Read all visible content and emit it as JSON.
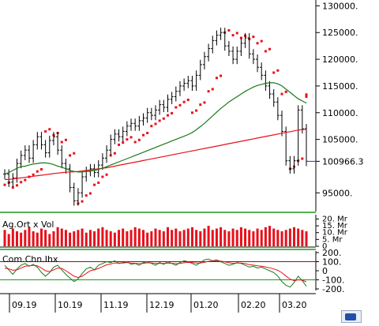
{
  "chart_data": [
    {
      "type": "ohlc",
      "panel": "price",
      "y_ticks": [
        "130000.",
        "125000.",
        "120000.",
        "115000.",
        "110000.",
        "105000.",
        "100966.3",
        "95000."
      ],
      "ylim": [
        91500,
        130500
      ],
      "last_value_label": "100966.3",
      "x_ticks": [
        "09.19",
        "10.19",
        "11.19",
        "12.19",
        "01.20",
        "02.20",
        "03.20"
      ],
      "closes": [
        98500,
        97000,
        97800,
        100500,
        102000,
        103000,
        101500,
        104000,
        105500,
        104000,
        102500,
        104800,
        105500,
        103000,
        100500,
        99500,
        96000,
        93500,
        95000,
        98000,
        99000,
        99500,
        98800,
        100200,
        101500,
        103000,
        105000,
        106000,
        105500,
        106500,
        107500,
        108000,
        107500,
        108500,
        109000,
        110000,
        109500,
        110500,
        111500,
        111000,
        112500,
        113000,
        114000,
        115000,
        115500,
        116000,
        115000,
        117000,
        119000,
        120500,
        122000,
        123500,
        124500,
        125000,
        122500,
        121500,
        120000,
        121500,
        123000,
        124000,
        121000,
        120000,
        118500,
        117000,
        115000,
        113500,
        112000,
        109500,
        106500,
        101000,
        99500,
        101000,
        110500,
        107000,
        100900
      ],
      "sar": [
        {
          "i": 0,
          "v": 96500
        },
        {
          "i": 2,
          "v": 96000
        },
        {
          "i": 4,
          "v": 97000
        },
        {
          "i": 6,
          "v": 98000
        },
        {
          "i": 8,
          "v": 99000
        },
        {
          "i": 10,
          "v": 106500
        },
        {
          "i": 12,
          "v": 105800
        },
        {
          "i": 14,
          "v": 104500
        },
        {
          "i": 16,
          "v": 102000
        },
        {
          "i": 18,
          "v": 93000
        },
        {
          "i": 20,
          "v": 94500
        },
        {
          "i": 22,
          "v": 96500
        },
        {
          "i": 24,
          "v": 98000
        },
        {
          "i": 26,
          "v": 102000
        },
        {
          "i": 28,
          "v": 104000
        },
        {
          "i": 30,
          "v": 105000
        },
        {
          "i": 32,
          "v": 104500
        },
        {
          "i": 34,
          "v": 105800
        },
        {
          "i": 36,
          "v": 107500
        },
        {
          "i": 38,
          "v": 108500
        },
        {
          "i": 40,
          "v": 109500
        },
        {
          "i": 42,
          "v": 111000
        },
        {
          "i": 44,
          "v": 112000
        },
        {
          "i": 46,
          "v": 110000
        },
        {
          "i": 48,
          "v": 111500
        },
        {
          "i": 50,
          "v": 114000
        },
        {
          "i": 52,
          "v": 116500
        },
        {
          "i": 54,
          "v": 125000
        },
        {
          "i": 56,
          "v": 124500
        },
        {
          "i": 58,
          "v": 124000
        },
        {
          "i": 60,
          "v": 123800
        },
        {
          "i": 62,
          "v": 123000
        },
        {
          "i": 64,
          "v": 121500
        },
        {
          "i": 66,
          "v": 117500
        },
        {
          "i": 68,
          "v": 113500
        },
        {
          "i": 70,
          "v": 99500
        },
        {
          "i": 72,
          "v": 101000
        },
        {
          "i": 74,
          "v": 113000
        }
      ],
      "ma_long": [
        97500,
        97500,
        97600,
        97700,
        97800,
        97900,
        98000,
        98100,
        98200,
        98300,
        98400,
        98500,
        98600,
        98700,
        98800,
        98850,
        98900,
        98950,
        99000,
        99100,
        99200,
        99300,
        99400,
        99500,
        99600,
        99700,
        99850,
        100000,
        100150,
        100300,
        100450,
        100600,
        100750,
        100900,
        101050,
        101200,
        101350,
        101500,
        101650,
        101800,
        101950,
        102100,
        102250,
        102400,
        102550,
        102700,
        102850,
        103000,
        103150,
        103300,
        103450,
        103600,
        103750,
        103900,
        104050,
        104200,
        104350,
        104500,
        104650,
        104800,
        104950,
        105100,
        105250,
        105400,
        105550,
        105700,
        105850,
        106000,
        106150,
        106300,
        106450,
        106600,
        106750,
        106850,
        106900
      ],
      "ma_short": [
        98500,
        98800,
        99200,
        99600,
        99900,
        100000,
        100200,
        100400,
        100500,
        100600,
        100600,
        100500,
        100300,
        100000,
        99800,
        99500,
        99200,
        99000,
        98900,
        98900,
        99000,
        99100,
        99200,
        99400,
        99600,
        99900,
        100200,
        100500,
        100800,
        101100,
        101400,
        101700,
        102000,
        102300,
        102600,
        102900,
        103200,
        103500,
        103800,
        104100,
        104400,
        104700,
        105000,
        105300,
        105600,
        105900,
        106300,
        106800,
        107400,
        108000,
        108700,
        109400,
        110100,
        110800,
        111400,
        112000,
        112500,
        113000,
        113500,
        114000,
        114400,
        114800,
        115100,
        115300,
        115500,
        115600,
        115600,
        115400,
        115000,
        114400,
        113800,
        113200,
        112600,
        112200,
        111800
      ],
      "series": [
        {
          "name": "",
          "color": "#000000"
        },
        {
          "name": "",
          "color": "#e8101a"
        },
        {
          "name": "",
          "color": "#1a7a1a"
        },
        {
          "name": "",
          "color": "#e8101a"
        }
      ]
    },
    {
      "type": "bar",
      "panel": "volume",
      "title": "Ag.Ort x Vol",
      "y_ticks": [
        "20. Mr",
        "15. Mr",
        "10. Mr",
        "5. Mr",
        "0"
      ],
      "ylim": [
        0,
        22
      ],
      "values": [
        12,
        9,
        13,
        11,
        10,
        12,
        14,
        11,
        10,
        13,
        12,
        9,
        11,
        14,
        13,
        12,
        10,
        11,
        12,
        13,
        10,
        12,
        11,
        13,
        14,
        12,
        11,
        10,
        12,
        13,
        11,
        12,
        14,
        13,
        12,
        10,
        11,
        13,
        12,
        11,
        14,
        12,
        13,
        11,
        12,
        13,
        14,
        12,
        11,
        13,
        15,
        12,
        13,
        14,
        12,
        11,
        13,
        12,
        14,
        13,
        12,
        11,
        13,
        12,
        14,
        15,
        13,
        12,
        11,
        12,
        13,
        14,
        13,
        12,
        11
      ],
      "color": "#e8101a"
    },
    {
      "type": "line",
      "panel": "oscillator",
      "title": "Com.Chn.Ihx",
      "y_ticks": [
        "200.",
        "100.",
        "0",
        "-100.",
        "-200."
      ],
      "ylim": [
        -200,
        200
      ],
      "series": [
        {
          "name": "",
          "color": "#1a7a1a",
          "values": [
            60,
            10,
            -40,
            20,
            60,
            80,
            50,
            70,
            40,
            -20,
            -60,
            -20,
            40,
            60,
            10,
            -40,
            -80,
            -120,
            -90,
            -30,
            20,
            40,
            10,
            60,
            80,
            100,
            90,
            110,
            80,
            90,
            100,
            70,
            80,
            60,
            90,
            100,
            80,
            60,
            90,
            70,
            100,
            80,
            60,
            90,
            110,
            100,
            80,
            60,
            90,
            120,
            130,
            110,
            120,
            100,
            80,
            60,
            70,
            90,
            80,
            60,
            40,
            50,
            30,
            40,
            20,
            0,
            -20,
            -60,
            -120,
            -160,
            -180,
            -130,
            -60,
            -110,
            -170
          ]
        },
        {
          "name": "",
          "color": "#e8101a",
          "values": [
            30,
            20,
            5,
            10,
            30,
            50,
            55,
            60,
            55,
            30,
            0,
            -10,
            10,
            30,
            25,
            0,
            -30,
            -60,
            -75,
            -60,
            -30,
            0,
            10,
            25,
            45,
            65,
            75,
            85,
            85,
            85,
            90,
            85,
            82,
            78,
            82,
            88,
            86,
            80,
            82,
            80,
            84,
            82,
            78,
            80,
            88,
            92,
            90,
            84,
            84,
            94,
            104,
            106,
            108,
            106,
            98,
            88,
            82,
            84,
            84,
            78,
            68,
            62,
            54,
            50,
            42,
            32,
            20,
            4,
            -22,
            -58,
            -92,
            -110,
            -100,
            -104,
            -122
          ]
        }
      ],
      "reference_lines": [
        100,
        -100
      ]
    }
  ]
}
